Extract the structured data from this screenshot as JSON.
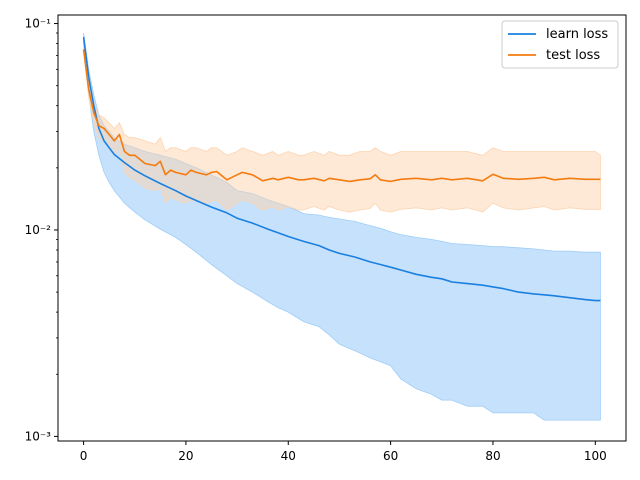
{
  "chart_data": {
    "type": "line",
    "title": "",
    "xlabel": "",
    "ylabel": "",
    "yscale": "log",
    "xlim": [
      -5,
      106
    ],
    "ylim": [
      0.00095,
      0.11
    ],
    "grid": false,
    "legend_position": "top-right",
    "x_ticks": [
      0,
      20,
      40,
      60,
      80,
      100
    ],
    "x_tick_labels": [
      "0",
      "20",
      "40",
      "60",
      "80",
      "100"
    ],
    "y_ticks": [
      0.001,
      0.01,
      0.1
    ],
    "y_tick_labels": [
      "10⁻³",
      "10⁻²",
      "10⁻¹"
    ],
    "series": [
      {
        "name": "learn loss",
        "color": "#1f77b4",
        "line_color": "#1a80e0",
        "band_color": "#9fcdf8",
        "x": [
          0,
          1,
          2,
          3,
          4,
          5,
          6,
          8,
          10,
          12,
          15,
          18,
          20,
          22,
          25,
          28,
          30,
          33,
          36,
          38,
          40,
          43,
          46,
          48,
          50,
          53,
          56,
          58,
          60,
          62,
          65,
          68,
          70,
          72,
          75,
          78,
          80,
          82,
          85,
          88,
          90,
          92,
          95,
          98,
          100,
          101
        ],
        "mean": [
          0.086,
          0.055,
          0.04,
          0.031,
          0.027,
          0.025,
          0.0232,
          0.0212,
          0.0195,
          0.0183,
          0.0168,
          0.0155,
          0.0146,
          0.0139,
          0.0129,
          0.0121,
          0.0114,
          0.0108,
          0.0101,
          0.0097,
          0.0093,
          0.0088,
          0.0084,
          0.008,
          0.0077,
          0.0074,
          0.007,
          0.0068,
          0.0066,
          0.0064,
          0.0061,
          0.0059,
          0.0058,
          0.0056,
          0.0055,
          0.0054,
          0.0053,
          0.0052,
          0.005,
          0.0049,
          0.00485,
          0.0048,
          0.0047,
          0.0046,
          0.00455,
          0.00455
        ],
        "upper": [
          0.09,
          0.06,
          0.045,
          0.036,
          0.032,
          0.03,
          0.028,
          0.026,
          0.025,
          0.024,
          0.023,
          0.022,
          0.021,
          0.02,
          0.0185,
          0.017,
          0.0155,
          0.015,
          0.014,
          0.0135,
          0.013,
          0.012,
          0.0118,
          0.0115,
          0.0113,
          0.011,
          0.0105,
          0.0102,
          0.0098,
          0.0095,
          0.0092,
          0.009,
          0.0088,
          0.0086,
          0.0085,
          0.0084,
          0.0083,
          0.0083,
          0.0082,
          0.0081,
          0.008,
          0.0079,
          0.0079,
          0.0078,
          0.0078,
          0.0078
        ],
        "lower": [
          0.08,
          0.045,
          0.03,
          0.023,
          0.019,
          0.017,
          0.0155,
          0.0135,
          0.0122,
          0.0112,
          0.0101,
          0.0092,
          0.0085,
          0.0078,
          0.0068,
          0.006,
          0.0055,
          0.005,
          0.0045,
          0.0042,
          0.004,
          0.0036,
          0.0034,
          0.0031,
          0.0028,
          0.0026,
          0.0024,
          0.0023,
          0.0022,
          0.0019,
          0.0017,
          0.0016,
          0.0015,
          0.0015,
          0.0014,
          0.0014,
          0.0013,
          0.0013,
          0.0013,
          0.0013,
          0.0012,
          0.0012,
          0.0012,
          0.0012,
          0.0012,
          0.0012
        ]
      },
      {
        "name": "test loss",
        "color": "#ff7f0e",
        "line_color": "#f47b0f",
        "band_color": "#fdd4b0",
        "x": [
          0,
          1,
          2,
          3,
          4,
          5,
          6,
          7,
          8,
          9,
          10,
          12,
          14,
          15,
          16,
          17,
          18,
          20,
          21,
          22,
          24,
          25,
          26,
          28,
          30,
          31,
          33,
          35,
          37,
          38,
          40,
          42,
          43,
          45,
          47,
          48,
          50,
          52,
          54,
          56,
          57,
          58,
          60,
          62,
          65,
          68,
          70,
          72,
          75,
          78,
          80,
          82,
          85,
          88,
          90,
          92,
          95,
          98,
          100,
          101
        ],
        "mean": [
          0.075,
          0.048,
          0.037,
          0.032,
          0.031,
          0.029,
          0.027,
          0.029,
          0.024,
          0.023,
          0.023,
          0.021,
          0.0205,
          0.0215,
          0.0185,
          0.0195,
          0.019,
          0.0185,
          0.0195,
          0.019,
          0.0185,
          0.019,
          0.0192,
          0.0175,
          0.0185,
          0.019,
          0.0185,
          0.0173,
          0.0178,
          0.0175,
          0.018,
          0.0175,
          0.0175,
          0.0178,
          0.0173,
          0.0178,
          0.0175,
          0.0172,
          0.0175,
          0.0177,
          0.0185,
          0.0175,
          0.0172,
          0.0176,
          0.0178,
          0.0175,
          0.0178,
          0.0175,
          0.0178,
          0.0173,
          0.0186,
          0.0178,
          0.0176,
          0.0178,
          0.018,
          0.0175,
          0.0178,
          0.0176,
          0.0176,
          0.0176
        ],
        "upper": [
          0.078,
          0.052,
          0.041,
          0.036,
          0.035,
          0.033,
          0.031,
          0.033,
          0.029,
          0.028,
          0.028,
          0.027,
          0.026,
          0.028,
          0.024,
          0.025,
          0.025,
          0.024,
          0.025,
          0.025,
          0.024,
          0.025,
          0.025,
          0.023,
          0.024,
          0.025,
          0.024,
          0.023,
          0.024,
          0.023,
          0.024,
          0.023,
          0.023,
          0.024,
          0.023,
          0.024,
          0.023,
          0.023,
          0.024,
          0.024,
          0.025,
          0.024,
          0.023,
          0.024,
          0.024,
          0.024,
          0.024,
          0.024,
          0.024,
          0.023,
          0.025,
          0.024,
          0.024,
          0.024,
          0.024,
          0.024,
          0.024,
          0.024,
          0.024,
          0.023
        ],
        "lower": [
          0.072,
          0.044,
          0.033,
          0.028,
          0.027,
          0.025,
          0.023,
          0.025,
          0.019,
          0.018,
          0.0175,
          0.016,
          0.0155,
          0.016,
          0.0135,
          0.0145,
          0.014,
          0.0135,
          0.014,
          0.0138,
          0.0135,
          0.0138,
          0.014,
          0.0125,
          0.0135,
          0.014,
          0.0135,
          0.0125,
          0.013,
          0.0125,
          0.013,
          0.0125,
          0.0125,
          0.013,
          0.0125,
          0.013,
          0.0125,
          0.0122,
          0.0125,
          0.0127,
          0.0135,
          0.0125,
          0.0122,
          0.0126,
          0.0128,
          0.0125,
          0.0128,
          0.0125,
          0.0128,
          0.0122,
          0.0135,
          0.0128,
          0.0125,
          0.0128,
          0.013,
          0.0125,
          0.0128,
          0.0126,
          0.0126,
          0.0126
        ]
      }
    ]
  }
}
